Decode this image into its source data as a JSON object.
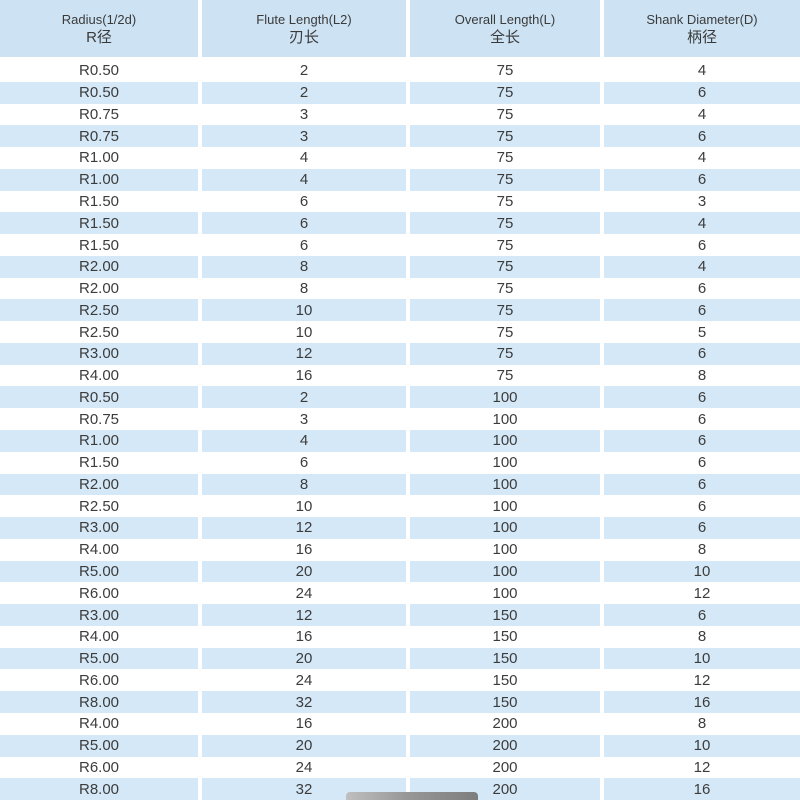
{
  "chart_data": {
    "type": "table",
    "title": "",
    "columns": [
      {
        "label_en": "Radius(1/2d)",
        "label_zh": "R径"
      },
      {
        "label_en": "Flute Length(L2)",
        "label_zh": "刃长"
      },
      {
        "label_en": "Overall Length(L)",
        "label_zh": "全长"
      },
      {
        "label_en": "Shank Diameter(D)",
        "label_zh": "柄径"
      }
    ],
    "rows": [
      [
        "R0.50",
        "2",
        "75",
        "4"
      ],
      [
        "R0.50",
        "2",
        "75",
        "6"
      ],
      [
        "R0.75",
        "3",
        "75",
        "4"
      ],
      [
        "R0.75",
        "3",
        "75",
        "6"
      ],
      [
        "R1.00",
        "4",
        "75",
        "4"
      ],
      [
        "R1.00",
        "4",
        "75",
        "6"
      ],
      [
        "R1.50",
        "6",
        "75",
        "3"
      ],
      [
        "R1.50",
        "6",
        "75",
        "4"
      ],
      [
        "R1.50",
        "6",
        "75",
        "6"
      ],
      [
        "R2.00",
        "8",
        "75",
        "4"
      ],
      [
        "R2.00",
        "8",
        "75",
        "6"
      ],
      [
        "R2.50",
        "10",
        "75",
        "6"
      ],
      [
        "R2.50",
        "10",
        "75",
        "5"
      ],
      [
        "R3.00",
        "12",
        "75",
        "6"
      ],
      [
        "R4.00",
        "16",
        "75",
        "8"
      ],
      [
        "R0.50",
        "2",
        "100",
        "6"
      ],
      [
        "R0.75",
        "3",
        "100",
        "6"
      ],
      [
        "R1.00",
        "4",
        "100",
        "6"
      ],
      [
        "R1.50",
        "6",
        "100",
        "6"
      ],
      [
        "R2.00",
        "8",
        "100",
        "6"
      ],
      [
        "R2.50",
        "10",
        "100",
        "6"
      ],
      [
        "R3.00",
        "12",
        "100",
        "6"
      ],
      [
        "R4.00",
        "16",
        "100",
        "8"
      ],
      [
        "R5.00",
        "20",
        "100",
        "10"
      ],
      [
        "R6.00",
        "24",
        "100",
        "12"
      ],
      [
        "R3.00",
        "12",
        "150",
        "6"
      ],
      [
        "R4.00",
        "16",
        "150",
        "8"
      ],
      [
        "R5.00",
        "20",
        "150",
        "10"
      ],
      [
        "R6.00",
        "24",
        "150",
        "12"
      ],
      [
        "R8.00",
        "32",
        "150",
        "16"
      ],
      [
        "R4.00",
        "16",
        "200",
        "8"
      ],
      [
        "R5.00",
        "20",
        "200",
        "10"
      ],
      [
        "R6.00",
        "24",
        "200",
        "12"
      ],
      [
        "R8.00",
        "32",
        "200",
        "16"
      ]
    ],
    "layout": {
      "row_striping": "first data row white, alternating light blue",
      "grid": "white gaps between columns and below header",
      "legend_position": "none"
    }
  },
  "colors": {
    "header_blue": "#cde3f4",
    "row_alt_blue": "#d5e8f7",
    "row_white": "#ffffff",
    "text_dark": "#3c3c3c",
    "photo_gray": "#8e8e8e"
  }
}
